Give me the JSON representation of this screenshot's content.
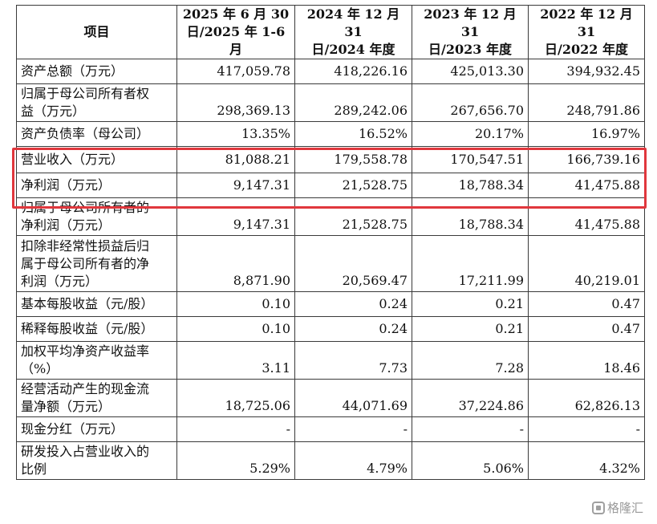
{
  "table": {
    "header": {
      "item": "项目",
      "periods": [
        [
          "2025 年 6 月 30",
          "日/2025 年 1-6 月"
        ],
        [
          "2024 年 12 月 31",
          "日/2024 年度"
        ],
        [
          "2023 年 12 月 31",
          "日/2023 年度"
        ],
        [
          "2022 年 12 月 31",
          "日/2022 年度"
        ]
      ]
    },
    "rows": [
      {
        "label": [
          "资产总额（万元）"
        ],
        "values": [
          "417,059.78",
          "418,226.16",
          "425,013.30",
          "394,932.45"
        ]
      },
      {
        "label": [
          "归属于母公司所有者权",
          "益（万元）"
        ],
        "values": [
          "298,369.13",
          "289,242.06",
          "267,656.70",
          "248,791.86"
        ]
      },
      {
        "label": [
          "资产负债率（母公司）"
        ],
        "values": [
          "13.35%",
          "16.52%",
          "20.17%",
          "16.97%"
        ]
      },
      {
        "label": [
          "营业收入（万元）"
        ],
        "values": [
          "81,088.21",
          "179,558.78",
          "170,547.51",
          "166,739.16"
        ]
      },
      {
        "label": [
          "净利润（万元）"
        ],
        "values": [
          "9,147.31",
          "21,528.75",
          "18,788.34",
          "41,475.88"
        ]
      },
      {
        "label": [
          "归属于母公司所有者的",
          "净利润（万元）"
        ],
        "values": [
          "9,147.31",
          "21,528.75",
          "18,788.34",
          "41,475.88"
        ]
      },
      {
        "label": [
          "扣除非经常性损益后归",
          "属于母公司所有者的净",
          "利润（万元）"
        ],
        "values": [
          "8,871.90",
          "20,569.47",
          "17,211.99",
          "40,219.01"
        ]
      },
      {
        "label": [
          "基本每股收益（元/股）"
        ],
        "values": [
          "0.10",
          "0.24",
          "0.21",
          "0.47"
        ]
      },
      {
        "label": [
          "稀释每股收益（元/股）"
        ],
        "values": [
          "0.10",
          "0.24",
          "0.21",
          "0.47"
        ]
      },
      {
        "label": [
          "加权平均净资产收益率",
          "（%）"
        ],
        "values": [
          "3.11",
          "7.73",
          "7.28",
          "18.46"
        ]
      },
      {
        "label": [
          "经营活动产生的现金流",
          "量净额（万元）"
        ],
        "values": [
          "18,725.06",
          "44,071.69",
          "37,224.86",
          "62,826.13"
        ]
      },
      {
        "label": [
          "现金分红（万元）"
        ],
        "values": [
          "-",
          "-",
          "-",
          "-"
        ]
      },
      {
        "label": [
          "研发投入占营业收入的",
          "比例"
        ],
        "values": [
          "5.29%",
          "4.79%",
          "5.06%",
          "4.32%"
        ]
      }
    ]
  },
  "highlight_color": "#e0373d",
  "watermark": {
    "text": "格隆汇",
    "icon": "brand-logo-icon"
  }
}
